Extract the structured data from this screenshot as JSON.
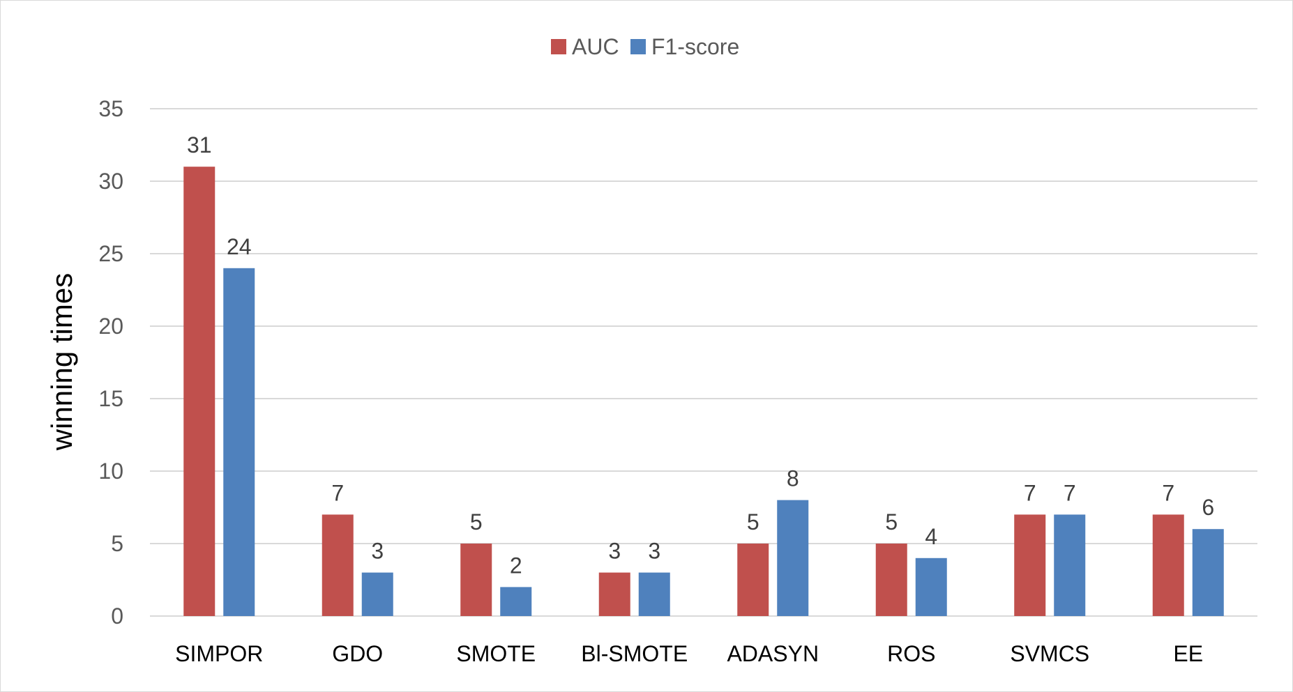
{
  "chart_data": {
    "type": "bar",
    "title": "",
    "xlabel": "",
    "ylabel": "winning times",
    "categories": [
      "SIMPOR",
      "GDO",
      "SMOTE",
      "Bl-SMOTE",
      "ADASYN",
      "ROS",
      "SVMCS",
      "EE"
    ],
    "series": [
      {
        "name": "AUC",
        "color": "#C0504D",
        "values": [
          31,
          7,
          5,
          3,
          5,
          5,
          7,
          7
        ]
      },
      {
        "name": "F1-score",
        "color": "#4F81BD",
        "values": [
          24,
          3,
          2,
          3,
          8,
          4,
          7,
          6
        ]
      }
    ],
    "ylim": [
      0,
      35
    ],
    "yticks": [
      0,
      5,
      10,
      15,
      20,
      25,
      30,
      35
    ],
    "grid": true,
    "legend_position": "top-center",
    "data_labels": true
  }
}
